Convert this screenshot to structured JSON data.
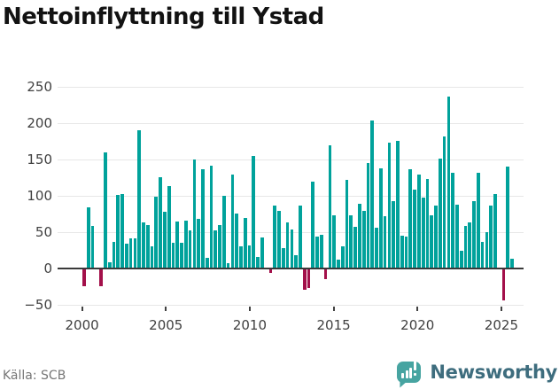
{
  "title": "Nettoinflyttning till Ystad",
  "source": "Källa: SCB",
  "logo": {
    "text": "Newsworthy"
  },
  "colors": {
    "bar_positive": "#00a29b",
    "bar_negative": "#a3104a",
    "grid": "#e7e7e7",
    "zero_line": "#3a3a3a",
    "axis_text": "#404040",
    "title_text": "#121212",
    "source_text": "#767676",
    "logo_mark": "#47a4a1",
    "logo_text": "#3e6d7e"
  },
  "chart_data": {
    "type": "bar",
    "title": "Nettoinflyttning till Ystad",
    "frequency": "quarterly",
    "start_year": 2000,
    "start_period": "2000 Q1",
    "end_period": "2025 Q2",
    "x_ticks": [
      2000,
      2005,
      2010,
      2015,
      2020,
      2025
    ],
    "y_ticks": [
      -50,
      0,
      50,
      100,
      150,
      200,
      250
    ],
    "y_tick_labels": [
      "−50",
      "0",
      "50",
      "100",
      "150",
      "200",
      "250"
    ],
    "ylim": [
      -60,
      260
    ],
    "grid": true,
    "legend": false,
    "values": [
      -23,
      84,
      58,
      0,
      -23,
      160,
      8,
      36,
      101,
      103,
      34,
      41,
      42,
      190,
      63,
      60,
      31,
      99,
      126,
      78,
      113,
      35,
      65,
      35,
      66,
      52,
      150,
      68,
      136,
      15,
      141,
      52,
      60,
      100,
      7,
      129,
      76,
      30,
      70,
      32,
      155,
      16,
      43,
      0,
      -5,
      86,
      79,
      28,
      64,
      54,
      18,
      87,
      -28,
      -26,
      120,
      44,
      46,
      -14,
      170,
      73,
      12,
      31,
      122,
      73,
      57,
      89,
      79,
      145,
      204,
      56,
      138,
      72,
      173,
      93,
      176,
      45,
      44,
      136,
      108,
      129,
      97,
      123,
      73,
      87,
      151,
      182,
      237,
      132,
      88,
      24,
      58,
      63,
      93,
      132,
      37,
      50,
      87,
      102,
      0,
      -43,
      140,
      14
    ]
  }
}
